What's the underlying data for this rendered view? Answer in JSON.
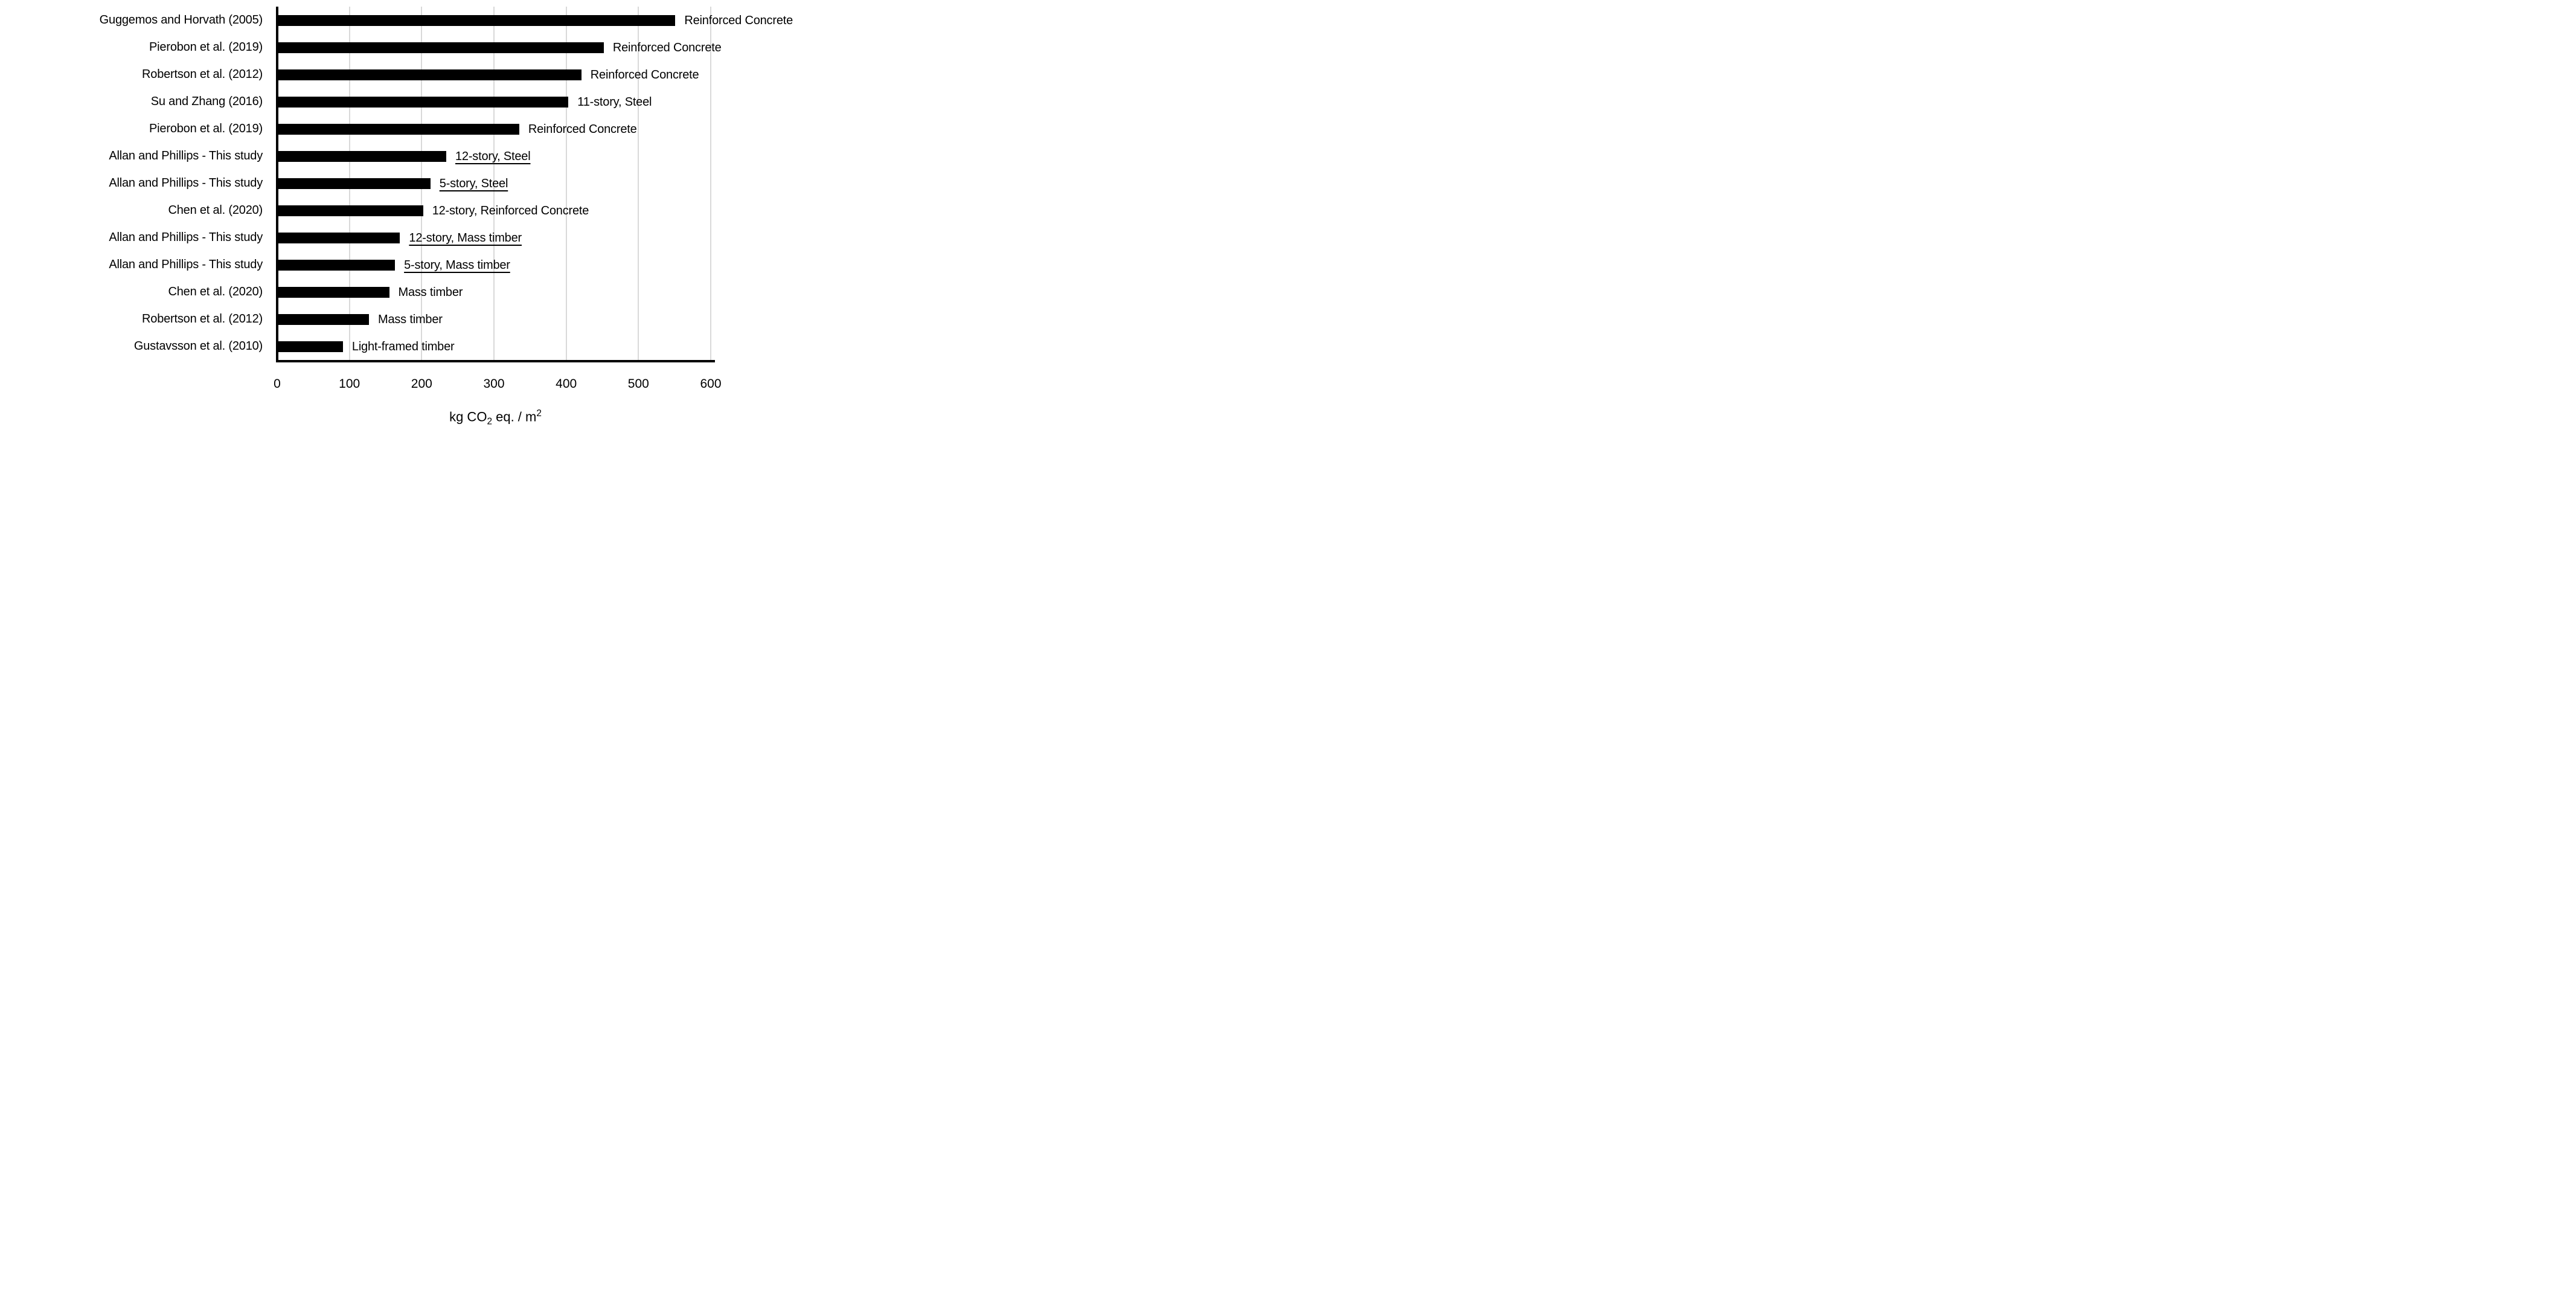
{
  "chart_data": {
    "type": "bar",
    "orientation": "horizontal",
    "title": "",
    "xlabel_parts": [
      "kg CO",
      "2",
      " eq. / m",
      "2"
    ],
    "xlabel_plain": "kg CO2 eq. / m2",
    "xlim": [
      0,
      600
    ],
    "xticks": [
      0,
      100,
      200,
      300,
      400,
      500,
      600
    ],
    "grid": "vertical-light-gray",
    "bar_color": "#000000",
    "gridline_color": "#d9d9d9",
    "axis_color": "#000000",
    "rows": [
      {
        "study": "Guggemos and Horvath (2005)",
        "label": "Reinforced Concrete",
        "value": 551,
        "underline": false
      },
      {
        "study": "Pierobon et al. (2019)",
        "label": "Reinforced Concrete",
        "value": 452,
        "underline": false
      },
      {
        "study": "Robertson et al. (2012)",
        "label": "Reinforced Concrete",
        "value": 421,
        "underline": false
      },
      {
        "study": "Su and Zhang (2016)",
        "label": "11-story, Steel",
        "value": 403,
        "underline": false
      },
      {
        "study": "Pierobon et al. (2019)",
        "label": "Reinforced Concrete",
        "value": 335,
        "underline": false
      },
      {
        "study": "Allan and Phillips - This study",
        "label": "12-story, Steel",
        "value": 234,
        "underline": true
      },
      {
        "study": "Allan and Phillips - This study",
        "label": "5-story, Steel",
        "value": 212,
        "underline": true
      },
      {
        "study": "Chen et al. (2020)",
        "label": "12-story, Reinforced Concrete",
        "value": 202,
        "underline": false
      },
      {
        "study": "Allan and Phillips - This study",
        "label": "12-story, Mass timber",
        "value": 170,
        "underline": true
      },
      {
        "study": "Allan and Phillips - This study",
        "label": "5-story, Mass timber",
        "value": 163,
        "underline": true
      },
      {
        "study": "Chen et al. (2020)",
        "label": "Mass timber",
        "value": 155,
        "underline": false
      },
      {
        "study": "Robertson et al. (2012)",
        "label": "Mass timber",
        "value": 127,
        "underline": false
      },
      {
        "study": "Gustavsson et al. (2010)",
        "label": "Light-framed timber",
        "value": 91,
        "underline": false
      }
    ]
  }
}
